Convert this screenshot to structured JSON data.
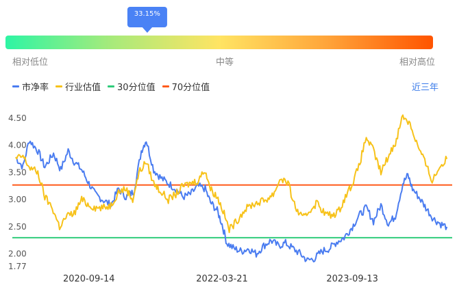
{
  "gauge": {
    "percent_label": "33.15%",
    "percent": 0.3315,
    "labels": {
      "low": "相对低位",
      "mid": "中等",
      "high": "相对高位"
    }
  },
  "legend": [
    {
      "label": "市净率",
      "color": "#4a7cf0"
    },
    {
      "label": "行业估值",
      "color": "#f7c21a"
    },
    {
      "label": "30分位值",
      "color": "#2ecb7a"
    },
    {
      "label": "70分位值",
      "color": "#ff5a1a"
    }
  ],
  "range_button": "近三年",
  "chart_data": {
    "type": "line",
    "x_ticks": [
      "2020-09-14",
      "2022-03-21",
      "2023-09-13"
    ],
    "y_ticks": [
      "4.50",
      "4.00",
      "3.50",
      "3.00",
      "2.50",
      "2.00",
      "1.77"
    ],
    "ylim": [
      1.77,
      4.6
    ],
    "x_range": [
      "2019-11-01",
      "2024-11-01"
    ],
    "reference_lines": [
      {
        "name": "30分位值",
        "value": 2.3,
        "color": "#2ecb7a"
      },
      {
        "name": "70分位值",
        "value": 3.27,
        "color": "#ff5a1a"
      }
    ],
    "series": [
      {
        "name": "市净率",
        "color": "#4a7cf0",
        "points": [
          [
            "2019-11-15",
            3.78
          ],
          [
            "2019-12-15",
            3.6
          ],
          [
            "2020-01-10",
            4.1
          ],
          [
            "2020-02-15",
            3.9
          ],
          [
            "2020-03-15",
            3.6
          ],
          [
            "2020-04-20",
            3.85
          ],
          [
            "2020-05-20",
            3.55
          ],
          [
            "2020-06-20",
            3.9
          ],
          [
            "2020-07-15",
            3.7
          ],
          [
            "2020-08-15",
            3.55
          ],
          [
            "2020-09-14",
            3.3
          ],
          [
            "2020-10-10",
            3.1
          ],
          [
            "2020-11-10",
            3.0
          ],
          [
            "2020-12-15",
            2.9
          ],
          [
            "2021-01-15",
            3.2
          ],
          [
            "2021-02-15",
            3.05
          ],
          [
            "2021-03-20",
            3.15
          ],
          [
            "2021-04-20",
            3.9
          ],
          [
            "2021-05-10",
            4.1
          ],
          [
            "2021-06-10",
            3.55
          ],
          [
            "2021-07-10",
            3.4
          ],
          [
            "2021-08-10",
            3.3
          ],
          [
            "2021-09-10",
            3.2
          ],
          [
            "2021-10-10",
            3.05
          ],
          [
            "2021-11-10",
            3.1
          ],
          [
            "2021-12-10",
            3.25
          ],
          [
            "2022-01-10",
            3.2
          ],
          [
            "2022-02-01",
            2.95
          ],
          [
            "2022-03-01",
            2.8
          ],
          [
            "2022-03-21",
            2.55
          ],
          [
            "2022-04-10",
            2.2
          ],
          [
            "2022-05-10",
            2.1
          ],
          [
            "2022-06-10",
            2.05
          ],
          [
            "2022-07-10",
            2.1
          ],
          [
            "2022-08-10",
            2.0
          ],
          [
            "2022-09-10",
            2.15
          ],
          [
            "2022-10-10",
            2.25
          ],
          [
            "2022-11-10",
            2.15
          ],
          [
            "2022-12-10",
            2.2
          ],
          [
            "2023-01-10",
            2.1
          ],
          [
            "2023-02-10",
            2.0
          ],
          [
            "2023-03-10",
            1.88
          ],
          [
            "2023-04-10",
            1.92
          ],
          [
            "2023-05-10",
            2.05
          ],
          [
            "2023-06-10",
            2.1
          ],
          [
            "2023-07-10",
            2.22
          ],
          [
            "2023-08-10",
            2.3
          ],
          [
            "2023-09-13",
            2.5
          ],
          [
            "2023-10-10",
            2.7
          ],
          [
            "2023-11-10",
            2.85
          ],
          [
            "2023-12-10",
            2.6
          ],
          [
            "2024-01-10",
            2.9
          ],
          [
            "2024-02-10",
            2.55
          ],
          [
            "2024-03-10",
            2.7
          ],
          [
            "2024-04-10",
            3.3
          ],
          [
            "2024-05-01",
            3.45
          ],
          [
            "2024-05-20",
            3.2
          ],
          [
            "2024-06-15",
            3.05
          ],
          [
            "2024-07-15",
            2.85
          ],
          [
            "2024-08-15",
            2.65
          ],
          [
            "2024-09-15",
            2.55
          ],
          [
            "2024-10-10",
            2.5
          ]
        ]
      },
      {
        "name": "行业估值",
        "color": "#f7c21a",
        "points": [
          [
            "2019-11-15",
            3.75
          ],
          [
            "2019-12-15",
            3.8
          ],
          [
            "2020-01-10",
            3.6
          ],
          [
            "2020-02-15",
            3.5
          ],
          [
            "2020-03-15",
            3.05
          ],
          [
            "2020-04-15",
            2.85
          ],
          [
            "2020-05-15",
            2.5
          ],
          [
            "2020-06-15",
            2.7
          ],
          [
            "2020-07-15",
            2.75
          ],
          [
            "2020-08-15",
            3.0
          ],
          [
            "2020-09-14",
            2.9
          ],
          [
            "2020-10-15",
            2.85
          ],
          [
            "2020-11-15",
            2.85
          ],
          [
            "2020-12-15",
            2.9
          ],
          [
            "2021-01-15",
            3.15
          ],
          [
            "2021-02-15",
            3.2
          ],
          [
            "2021-03-15",
            3.0
          ],
          [
            "2021-04-10",
            3.5
          ],
          [
            "2021-05-10",
            3.7
          ],
          [
            "2021-06-10",
            3.3
          ],
          [
            "2021-07-10",
            3.15
          ],
          [
            "2021-08-10",
            3.0
          ],
          [
            "2021-09-10",
            3.1
          ],
          [
            "2021-10-10",
            3.25
          ],
          [
            "2021-11-10",
            3.3
          ],
          [
            "2021-12-10",
            3.35
          ],
          [
            "2022-01-10",
            3.55
          ],
          [
            "2022-02-01",
            3.2
          ],
          [
            "2022-03-01",
            3.05
          ],
          [
            "2022-03-21",
            2.85
          ],
          [
            "2022-04-20",
            2.45
          ],
          [
            "2022-05-20",
            2.6
          ],
          [
            "2022-06-20",
            2.8
          ],
          [
            "2022-07-20",
            2.9
          ],
          [
            "2022-08-20",
            2.95
          ],
          [
            "2022-09-20",
            3.0
          ],
          [
            "2022-10-20",
            3.1
          ],
          [
            "2022-11-20",
            3.4
          ],
          [
            "2022-12-20",
            3.3
          ],
          [
            "2023-01-20",
            2.85
          ],
          [
            "2023-02-20",
            2.65
          ],
          [
            "2023-03-20",
            2.8
          ],
          [
            "2023-04-20",
            2.95
          ],
          [
            "2023-05-20",
            2.75
          ],
          [
            "2023-06-20",
            2.7
          ],
          [
            "2023-07-20",
            2.8
          ],
          [
            "2023-08-20",
            3.1
          ],
          [
            "2023-09-13",
            3.3
          ],
          [
            "2023-10-10",
            3.6
          ],
          [
            "2023-11-10",
            4.15
          ],
          [
            "2023-12-10",
            3.9
          ],
          [
            "2024-01-10",
            3.5
          ],
          [
            "2024-02-10",
            3.8
          ],
          [
            "2024-03-10",
            4.05
          ],
          [
            "2024-04-10",
            4.55
          ],
          [
            "2024-05-10",
            4.4
          ],
          [
            "2024-06-10",
            4.0
          ],
          [
            "2024-07-10",
            3.7
          ],
          [
            "2024-08-10",
            3.35
          ],
          [
            "2024-09-10",
            3.6
          ],
          [
            "2024-10-10",
            3.75
          ]
        ]
      }
    ]
  }
}
